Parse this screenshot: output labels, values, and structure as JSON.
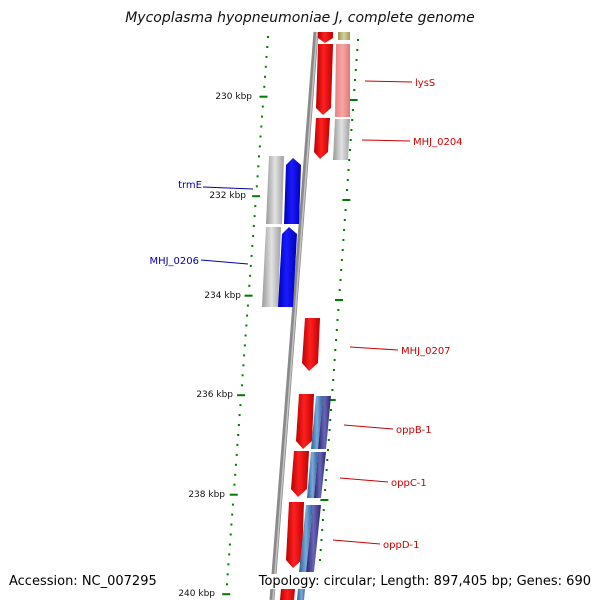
{
  "title": "Mycoplasma hyopneumoniae J, complete genome",
  "footer": {
    "accession": "Accession: NC_007295",
    "summary": "Topology: circular; Length: 897,405 bp; Genes: 690"
  },
  "colors": {
    "forward_gene": "#ff0000",
    "reverse_gene": "#0000ff",
    "label_forward": "#cc0000",
    "label_reverse": "#0000aa",
    "ruler_dots": "#007a00",
    "backbone": "#888888"
  },
  "ruler_ticks": [
    "230 kbp",
    "232 kbp",
    "234 kbp",
    "236 kbp",
    "238 kbp",
    "240 kbp"
  ],
  "genes": [
    {
      "name": "lysS",
      "strand": "forward"
    },
    {
      "name": "MHJ_0204",
      "strand": "forward"
    },
    {
      "name": "trmE",
      "strand": "reverse"
    },
    {
      "name": "MHJ_0206",
      "strand": "reverse"
    },
    {
      "name": "MHJ_0207",
      "strand": "forward"
    },
    {
      "name": "oppB-1",
      "strand": "forward"
    },
    {
      "name": "oppC-1",
      "strand": "forward"
    },
    {
      "name": "oppD-1",
      "strand": "forward"
    }
  ]
}
